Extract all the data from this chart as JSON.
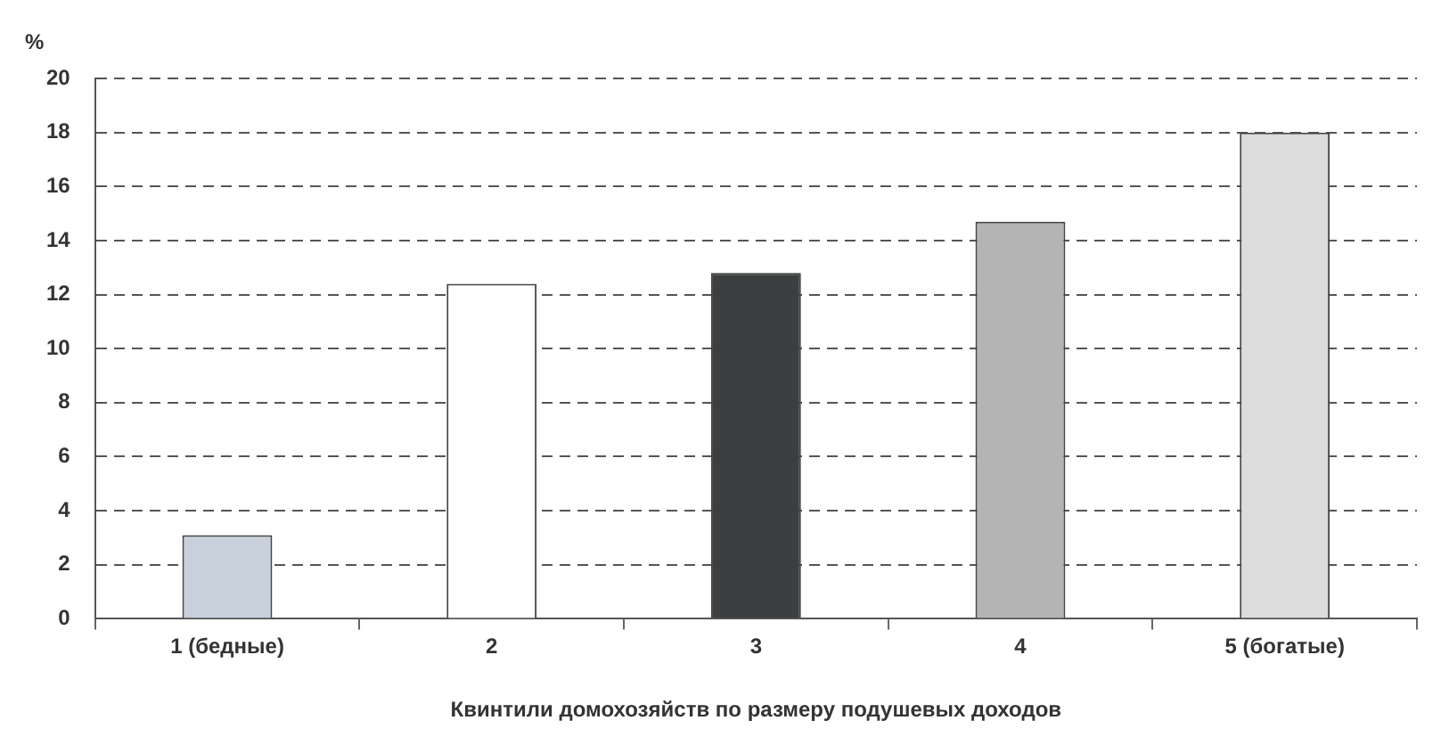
{
  "chart_data": {
    "type": "bar",
    "xlabel": "Квинтили домохозяйств по размеру подушевых доходов",
    "ylabel": "%",
    "categories": [
      "1 (бедные)",
      "2",
      "3",
      "4",
      "5 (богатые)"
    ],
    "values": [
      3.1,
      12.4,
      12.8,
      14.7,
      18.0
    ],
    "colors": [
      "#c8d0dc",
      "#ffffff",
      "#3c3f3f",
      "#b4b4b4",
      "#dcdcdc"
    ],
    "ylim": [
      0,
      20
    ],
    "yticks": [
      0,
      2,
      4,
      6,
      8,
      10,
      12,
      14,
      16,
      18,
      20
    ],
    "grid": "y",
    "legend": false
  }
}
